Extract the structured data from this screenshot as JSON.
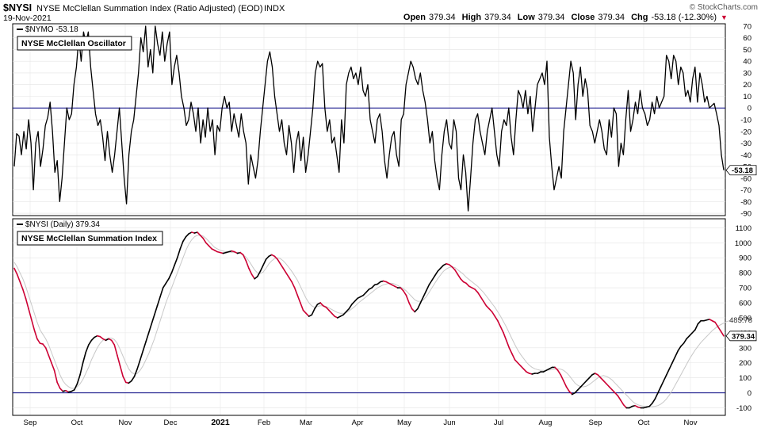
{
  "header": {
    "symbol": "$NYSI",
    "description": "NYSE McClellan Summation Index (Ratio Adjusted) (EOD)",
    "exchange": "INDX",
    "date": "19-Nov-2021",
    "watermark": "© StockCharts.com",
    "ohlc": [
      {
        "label": "Open",
        "value": "379.34"
      },
      {
        "label": "High",
        "value": "379.34"
      },
      {
        "label": "Low",
        "value": "379.34"
      },
      {
        "label": "Close",
        "value": "379.34"
      },
      {
        "label": "Chg",
        "value": "-53.18 (-12.30%)"
      }
    ],
    "chg_arrow": "▼"
  },
  "colors": {
    "background": "#ffffff",
    "grid": "#e4e4e4",
    "zero_line": "#000080",
    "oscillator_line": "#000000",
    "summation_up": "#000000",
    "summation_down": "#cc0033",
    "moving_average": "#c8c8c8",
    "text": "#000000",
    "label_box_border": "#000000",
    "arrow": "#cc0033",
    "watermark": "#555555"
  },
  "chart_data": [
    {
      "type": "line",
      "panel": "top",
      "legend": "$NYMO -53.18",
      "title": "NYSE McClellan Oscillator",
      "last_value_label": "-53.18",
      "y_ticks": [
        70,
        60,
        50,
        40,
        30,
        20,
        10,
        0,
        -10,
        -20,
        -30,
        -40,
        -50,
        -60,
        -70,
        -80,
        -90
      ],
      "ylim": [
        -92,
        72
      ],
      "reference_line": 0,
      "grid": true,
      "series": [
        {
          "values": [
            -50,
            -22,
            -24,
            -40,
            -20,
            -35,
            -10,
            -30,
            -70,
            -30,
            -20,
            -50,
            -35,
            -15,
            -8,
            5,
            -20,
            -55,
            -45,
            -80,
            -60,
            -30,
            0,
            -10,
            -5,
            20,
            35,
            60,
            40,
            65,
            55,
            65,
            35,
            15,
            -5,
            -15,
            -10,
            -25,
            -45,
            -20,
            -40,
            -55,
            -40,
            -20,
            0,
            -30,
            -60,
            -82,
            -40,
            -20,
            -10,
            10,
            30,
            60,
            48,
            70,
            35,
            50,
            30,
            70,
            55,
            45,
            65,
            40,
            55,
            65,
            20,
            35,
            45,
            30,
            10,
            0,
            -15,
            -10,
            5,
            -5,
            -20,
            0,
            -30,
            -10,
            -25,
            0,
            -20,
            -10,
            -40,
            -15,
            -20,
            0,
            10,
            0,
            5,
            -20,
            -5,
            -15,
            -25,
            -5,
            -20,
            -30,
            -65,
            -40,
            -50,
            -60,
            -45,
            -20,
            0,
            20,
            40,
            48,
            35,
            10,
            -5,
            -20,
            -10,
            -30,
            -40,
            -15,
            -30,
            -55,
            -30,
            -20,
            -45,
            -25,
            -55,
            -40,
            -20,
            0,
            30,
            40,
            35,
            38,
            0,
            -20,
            -10,
            -30,
            -25,
            -40,
            -55,
            -10,
            -30,
            20,
            30,
            35,
            25,
            30,
            20,
            35,
            15,
            10,
            20,
            -10,
            -20,
            -30,
            -10,
            -5,
            -20,
            -45,
            -60,
            -40,
            -25,
            -20,
            -40,
            -50,
            -10,
            -5,
            20,
            30,
            40,
            35,
            25,
            20,
            30,
            15,
            5,
            -10,
            -30,
            -20,
            -45,
            -60,
            -70,
            -40,
            -20,
            -10,
            -30,
            -35,
            -10,
            -20,
            -60,
            -70,
            -40,
            -55,
            -88,
            -60,
            -30,
            -10,
            -5,
            -20,
            -30,
            -40,
            -20,
            -10,
            0,
            -20,
            -40,
            -50,
            -20,
            -10,
            -15,
            0,
            -25,
            -40,
            -10,
            15,
            10,
            0,
            15,
            -5,
            10,
            -20,
            0,
            20,
            25,
            30,
            20,
            40,
            -25,
            -50,
            -70,
            -60,
            -50,
            -60,
            -20,
            0,
            20,
            40,
            30,
            -10,
            20,
            35,
            10,
            25,
            15,
            -15,
            -20,
            -30,
            -20,
            -10,
            -20,
            -35,
            -40,
            -10,
            -25,
            0,
            -5,
            -50,
            -30,
            -40,
            -10,
            15,
            -20,
            -10,
            5,
            -5,
            15,
            0,
            -5,
            -15,
            -10,
            5,
            -5,
            10,
            0,
            5,
            10,
            45,
            40,
            25,
            45,
            40,
            20,
            35,
            30,
            10,
            15,
            5,
            25,
            35,
            5,
            30,
            20,
            5,
            10,
            0,
            2,
            4,
            -5,
            -15,
            -40,
            -53.18
          ]
        }
      ]
    },
    {
      "type": "line",
      "panel": "bottom",
      "legend": "$NYSI (Daily) 379.34",
      "title": "NYSE McClellan Summation Index",
      "last_value_label": "379.34",
      "ma_value_label": "485.78",
      "y_ticks": [
        1100,
        1000,
        900,
        800,
        700,
        600,
        500,
        400,
        300,
        200,
        100,
        0,
        -100
      ],
      "ylim": [
        -150,
        1160
      ],
      "reference_line": 0,
      "grid": true,
      "x_ticks": [
        "Sep",
        "Oct",
        "Nov",
        "Dec",
        "2021",
        "Feb",
        "Mar",
        "Apr",
        "May",
        "Jun",
        "Jul",
        "Aug",
        "Sep",
        "Oct",
        "Nov"
      ],
      "series": [
        {
          "values": [
            830,
            790,
            740,
            690,
            630,
            560,
            490,
            420,
            360,
            330,
            325,
            300,
            250,
            200,
            150,
            70,
            30,
            10,
            15,
            5,
            10,
            20,
            60,
            120,
            200,
            270,
            320,
            350,
            370,
            380,
            375,
            360,
            350,
            360,
            350,
            320,
            250,
            180,
            110,
            70,
            65,
            80,
            110,
            160,
            220,
            280,
            340,
            400,
            460,
            520,
            580,
            640,
            700,
            730,
            760,
            800,
            850,
            900,
            960,
            1010,
            1040,
            1060,
            1070,
            1065,
            1070,
            1050,
            1030,
            1000,
            980,
            960,
            950,
            940,
            935,
            930,
            935,
            940,
            945,
            940,
            930,
            935,
            920,
            880,
            830,
            790,
            760,
            775,
            810,
            850,
            890,
            910,
            920,
            910,
            890,
            860,
            830,
            800,
            770,
            740,
            700,
            650,
            600,
            550,
            530,
            510,
            520,
            560,
            590,
            600,
            580,
            570,
            550,
            530,
            510,
            500,
            510,
            520,
            540,
            560,
            590,
            610,
            630,
            640,
            650,
            670,
            690,
            700,
            720,
            725,
            740,
            745,
            740,
            730,
            720,
            710,
            700,
            700,
            680,
            650,
            600,
            560,
            540,
            560,
            600,
            640,
            680,
            720,
            750,
            780,
            810,
            830,
            850,
            860,
            855,
            840,
            820,
            790,
            760,
            740,
            730,
            710,
            700,
            690,
            670,
            640,
            610,
            580,
            560,
            540,
            510,
            480,
            440,
            400,
            350,
            300,
            260,
            220,
            200,
            180,
            160,
            140,
            130,
            125,
            130,
            130,
            140,
            140,
            150,
            160,
            170,
            170,
            150,
            120,
            80,
            40,
            10,
            -10,
            0,
            20,
            40,
            60,
            80,
            100,
            120,
            130,
            120,
            100,
            80,
            60,
            40,
            20,
            0,
            -20,
            -50,
            -80,
            -100,
            -100,
            -90,
            -85,
            -95,
            -100,
            -100,
            -95,
            -90,
            -70,
            -40,
            0,
            40,
            80,
            120,
            160,
            200,
            240,
            280,
            310,
            330,
            360,
            380,
            400,
            420,
            460,
            480,
            480,
            485,
            490,
            480,
            470,
            440,
            410,
            379.34
          ]
        },
        {
          "name": "MA",
          "values": [
            870,
            840,
            800,
            760,
            710,
            650,
            590,
            530,
            470,
            420,
            390,
            360,
            320,
            270,
            220,
            170,
            120,
            80,
            55,
            40,
            30,
            30,
            40,
            60,
            90,
            130,
            170,
            220,
            260,
            300,
            330,
            350,
            360,
            365,
            365,
            355,
            330,
            290,
            245,
            200,
            160,
            135,
            125,
            130,
            150,
            180,
            220,
            260,
            310,
            360,
            420,
            480,
            540,
            600,
            650,
            700,
            750,
            800,
            850,
            900,
            950,
            990,
            1020,
            1040,
            1050,
            1050,
            1045,
            1030,
            1010,
            990,
            970,
            960,
            950,
            945,
            940,
            940,
            935,
            935,
            935,
            930,
            920,
            905,
            880,
            850,
            820,
            800,
            795,
            805,
            830,
            860,
            880,
            895,
            900,
            895,
            880,
            860,
            835,
            810,
            780,
            750,
            710,
            670,
            630,
            600,
            580,
            570,
            575,
            580,
            580,
            575,
            565,
            555,
            545,
            535,
            530,
            530,
            535,
            545,
            560,
            575,
            595,
            610,
            625,
            640,
            655,
            670,
            685,
            700,
            710,
            720,
            725,
            730,
            730,
            725,
            715,
            705,
            695,
            680,
            660,
            640,
            620,
            610,
            610,
            620,
            640,
            670,
            700,
            730,
            760,
            785,
            810,
            825,
            835,
            840,
            835,
            820,
            805,
            790,
            770,
            755,
            740,
            725,
            710,
            690,
            670,
            645,
            620,
            595,
            570,
            540,
            510,
            475,
            440,
            400,
            360,
            320,
            285,
            255,
            230,
            205,
            185,
            170,
            160,
            155,
            150,
            150,
            150,
            152,
            155,
            158,
            160,
            158,
            150,
            135,
            115,
            90,
            65,
            50,
            40,
            40,
            45,
            55,
            70,
            85,
            100,
            110,
            115,
            110,
            100,
            85,
            65,
            45,
            25,
            5,
            -15,
            -35,
            -55,
            -70,
            -80,
            -85,
            -90,
            -90,
            -92,
            -92,
            -90,
            -85,
            -75,
            -60,
            -40,
            -15,
            15,
            50,
            85,
            120,
            155,
            190,
            225,
            255,
            285,
            310,
            335,
            355,
            375,
            395,
            415,
            430,
            445,
            455,
            465,
            475,
            480,
            485.78
          ]
        }
      ]
    }
  ]
}
